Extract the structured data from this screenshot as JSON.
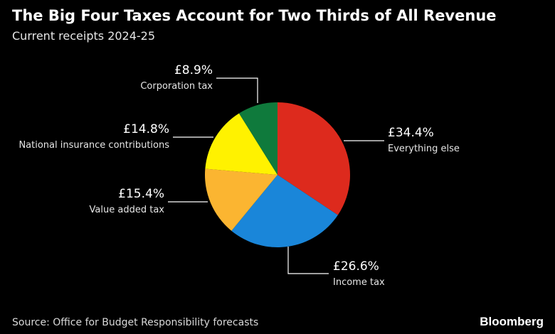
{
  "header": {
    "title": "The Big Four Taxes Account for Two Thirds of All Revenue",
    "subtitle": "Current receipts 2024-25"
  },
  "footer": {
    "source": "Source: Office for Budget Responsibility forecasts",
    "brand": "Bloomberg"
  },
  "chart_data": {
    "type": "pie",
    "title": "The Big Four Taxes Account for Two Thirds of All Revenue",
    "subtitle": "Current receipts 2024-25",
    "slices": [
      {
        "label": "Everything else",
        "value_text": "£34.4%",
        "value": 34.4,
        "color": "#dd2a1d"
      },
      {
        "label": "Income tax",
        "value_text": "£26.6%",
        "value": 26.6,
        "color": "#1a86d9"
      },
      {
        "label": "Value added tax",
        "value_text": "£15.4%",
        "value": 15.4,
        "color": "#fbb531"
      },
      {
        "label": "National insurance contributions",
        "value_text": "£14.8%",
        "value": 14.8,
        "color": "#fff200"
      },
      {
        "label": "Corporation tax",
        "value_text": "£8.9%",
        "value": 8.9,
        "color": "#0f7a3c"
      }
    ]
  }
}
